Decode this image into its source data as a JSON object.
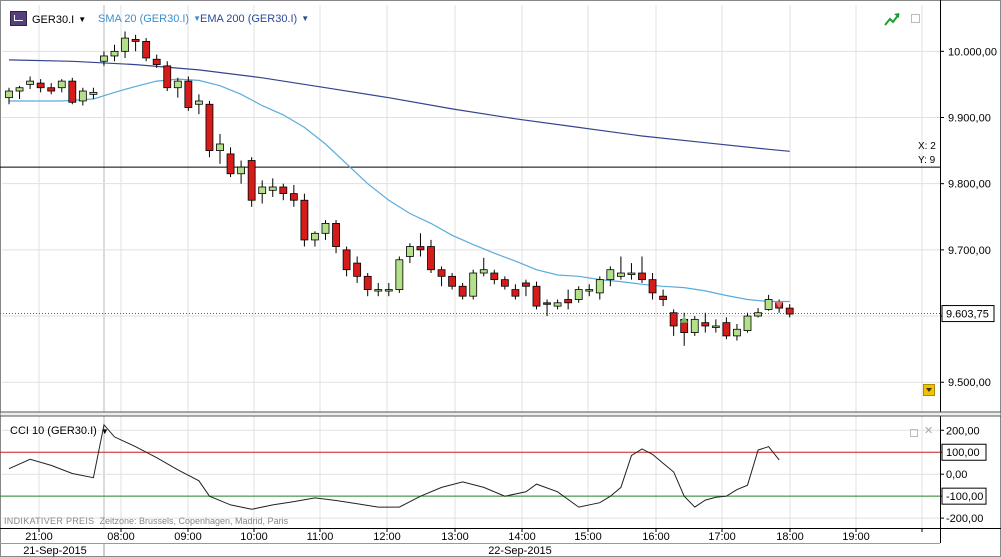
{
  "header": {
    "symbol": "GER30.I",
    "sma_label": "SMA 20 (GER30.I)",
    "ema_label": "EMA 200 (GER30.I)",
    "dropdown_glyph": "▼"
  },
  "crosshair": {
    "x_label": "X: 2",
    "y_label": "Y: 9"
  },
  "footer": {
    "note_main": "INDIKATIVER PREIS",
    "note_tz": "Zeitzone: Brussels, Copenhagen, Madrid, Paris"
  },
  "colors": {
    "bull": "#b4e08a",
    "bear": "#d61b1b",
    "sma": "#5aacdc",
    "ema": "#34448e",
    "cci": "#222222",
    "cci_upper": "#cc2222",
    "cci_lower": "#228822",
    "grid": "#e1e1e1"
  },
  "icons": {
    "trend": "trend-arrow-icon",
    "window": "window-icon",
    "close": "close-icon",
    "scroll": "scroll-down-icon"
  },
  "chart_data": [
    {
      "type": "candlestick",
      "symbol": "GER30.I",
      "ylim": [
        9455,
        10070
      ],
      "y_ticks": [
        9500,
        9600,
        9700,
        9800,
        9900,
        10000
      ],
      "y_tick_labels": [
        "9.500,00",
        "9.600,00",
        "9.700,00",
        "9.800,00",
        "9.900,00",
        "10.000,00"
      ],
      "current_price": 9603.75,
      "current_price_label": "9.603,75",
      "crosshair_price": 9825,
      "x_labels": [
        "21:00",
        "08:00",
        "09:00",
        "10:00",
        "11:00",
        "12:00",
        "13:00",
        "14:00",
        "15:00",
        "16:00",
        "17:00",
        "18:00",
        "19:00"
      ],
      "date_labels": [
        "21-Sep-2015",
        "22-Sep-2015"
      ],
      "candles": [
        [
          9930,
          9945,
          9920,
          9940
        ],
        [
          9940,
          9948,
          9928,
          9945
        ],
        [
          9950,
          9962,
          9943,
          9955
        ],
        [
          9952,
          9958,
          9938,
          9945
        ],
        [
          9945,
          9952,
          9935,
          9940
        ],
        [
          9945,
          9958,
          9938,
          9955
        ],
        [
          9955,
          9960,
          9920,
          9923
        ],
        [
          9925,
          9945,
          9918,
          9940
        ],
        [
          9935,
          9945,
          9928,
          9938
        ],
        [
          9985,
          10000,
          9978,
          9993
        ],
        [
          9993,
          10010,
          9985,
          10000
        ],
        [
          10000,
          10030,
          9990,
          10020
        ],
        [
          10018,
          10025,
          10000,
          10015
        ],
        [
          10015,
          10020,
          9985,
          9990
        ],
        [
          9988,
          9995,
          9975,
          9980
        ],
        [
          9978,
          9985,
          9940,
          9945
        ],
        [
          9945,
          9960,
          9930,
          9955
        ],
        [
          9955,
          9962,
          9910,
          9915
        ],
        [
          9920,
          9935,
          9905,
          9925
        ],
        [
          9920,
          9925,
          9840,
          9850
        ],
        [
          9850,
          9875,
          9830,
          9860
        ],
        [
          9845,
          9855,
          9810,
          9815
        ],
        [
          9815,
          9835,
          9800,
          9825
        ],
        [
          9835,
          9840,
          9765,
          9775
        ],
        [
          9785,
          9805,
          9770,
          9795
        ],
        [
          9790,
          9808,
          9780,
          9795
        ],
        [
          9795,
          9800,
          9775,
          9785
        ],
        [
          9785,
          9798,
          9765,
          9775
        ],
        [
          9775,
          9785,
          9705,
          9715
        ],
        [
          9715,
          9728,
          9705,
          9725
        ],
        [
          9725,
          9745,
          9715,
          9740
        ],
        [
          9740,
          9745,
          9695,
          9705
        ],
        [
          9700,
          9705,
          9660,
          9670
        ],
        [
          9680,
          9690,
          9650,
          9660
        ],
        [
          9660,
          9665,
          9630,
          9640
        ],
        [
          9640,
          9650,
          9630,
          9640
        ],
        [
          9640,
          9650,
          9630,
          9640
        ],
        [
          9640,
          9690,
          9635,
          9685
        ],
        [
          9690,
          9710,
          9680,
          9705
        ],
        [
          9705,
          9725,
          9690,
          9700
        ],
        [
          9705,
          9715,
          9665,
          9670
        ],
        [
          9670,
          9675,
          9645,
          9660
        ],
        [
          9660,
          9665,
          9640,
          9645
        ],
        [
          9645,
          9650,
          9625,
          9630
        ],
        [
          9630,
          9670,
          9625,
          9665
        ],
        [
          9665,
          9688,
          9660,
          9670
        ],
        [
          9665,
          9670,
          9648,
          9655
        ],
        [
          9655,
          9660,
          9640,
          9645
        ],
        [
          9640,
          9648,
          9625,
          9630
        ],
        [
          9650,
          9655,
          9630,
          9645
        ],
        [
          9645,
          9652,
          9610,
          9615
        ],
        [
          9620,
          9625,
          9600,
          9618
        ],
        [
          9615,
          9625,
          9610,
          9620
        ],
        [
          9625,
          9640,
          9610,
          9620
        ],
        [
          9625,
          9645,
          9620,
          9640
        ],
        [
          9640,
          9648,
          9630,
          9640
        ],
        [
          9635,
          9660,
          9625,
          9655
        ],
        [
          9655,
          9675,
          9645,
          9670
        ],
        [
          9660,
          9690,
          9655,
          9665
        ],
        [
          9665,
          9680,
          9655,
          9665
        ],
        [
          9665,
          9690,
          9650,
          9655
        ],
        [
          9655,
          9665,
          9625,
          9635
        ],
        [
          9630,
          9640,
          9615,
          9625
        ],
        [
          9605,
          9610,
          9570,
          9585
        ],
        [
          9595,
          9605,
          9555,
          9575
        ],
        [
          9575,
          9600,
          9570,
          9595
        ],
        [
          9590,
          9605,
          9575,
          9585
        ],
        [
          9585,
          9595,
          9575,
          9585
        ],
        [
          9590,
          9598,
          9565,
          9570
        ],
        [
          9570,
          9588,
          9563,
          9580
        ],
        [
          9578,
          9605,
          9575,
          9600
        ],
        [
          9600,
          9612,
          9598,
          9605
        ],
        [
          9610,
          9632,
          9608,
          9625
        ],
        [
          9620,
          9625,
          9605,
          9612
        ],
        [
          9612,
          9618,
          9598,
          9603
        ]
      ],
      "sma20": [
        [
          0,
          9925
        ],
        [
          5,
          9925
        ],
        [
          8,
          9928
        ],
        [
          10,
          9938
        ],
        [
          12,
          9947
        ],
        [
          14,
          9955
        ],
        [
          16,
          9958
        ],
        [
          18,
          9956
        ],
        [
          20,
          9948
        ],
        [
          22,
          9935
        ],
        [
          24,
          9918
        ],
        [
          26,
          9904
        ],
        [
          28,
          9885
        ],
        [
          30,
          9860
        ],
        [
          32,
          9830
        ],
        [
          34,
          9800
        ],
        [
          36,
          9775
        ],
        [
          38,
          9755
        ],
        [
          40,
          9740
        ],
        [
          42,
          9722
        ],
        [
          44,
          9708
        ],
        [
          46,
          9695
        ],
        [
          48,
          9683
        ],
        [
          50,
          9670
        ],
        [
          52,
          9662
        ],
        [
          54,
          9660
        ],
        [
          56,
          9655
        ],
        [
          58,
          9652
        ],
        [
          60,
          9648
        ],
        [
          62,
          9645
        ],
        [
          64,
          9643
        ],
        [
          66,
          9638
        ],
        [
          68,
          9631
        ],
        [
          70,
          9625
        ],
        [
          72,
          9622
        ],
        [
          74,
          9622
        ]
      ],
      "ema200": [
        [
          0,
          9987
        ],
        [
          6,
          9985
        ],
        [
          12,
          9980
        ],
        [
          18,
          9972
        ],
        [
          24,
          9960
        ],
        [
          30,
          9945
        ],
        [
          36,
          9930
        ],
        [
          42,
          9913
        ],
        [
          48,
          9898
        ],
        [
          54,
          9885
        ],
        [
          60,
          9872
        ],
        [
          66,
          9862
        ],
        [
          72,
          9852
        ],
        [
          74,
          9849
        ]
      ]
    },
    {
      "type": "line",
      "title": "CCI 10 (GER30.I)",
      "ylim": [
        -245,
        265
      ],
      "y_ticks": [
        200,
        100,
        0,
        -100,
        -200
      ],
      "y_tick_labels": [
        "200,00",
        "100,00",
        "0,00",
        "-100,00",
        "-200,00"
      ],
      "levels": [
        100,
        -100
      ],
      "values": [
        [
          0,
          25
        ],
        [
          2,
          68
        ],
        [
          4,
          40
        ],
        [
          6,
          3
        ],
        [
          8,
          -16
        ],
        [
          9,
          225
        ],
        [
          10,
          170
        ],
        [
          12,
          125
        ],
        [
          14,
          75
        ],
        [
          16,
          20
        ],
        [
          18,
          -30
        ],
        [
          19,
          -100
        ],
        [
          21,
          -140
        ],
        [
          23,
          -160
        ],
        [
          25,
          -140
        ],
        [
          27,
          -125
        ],
        [
          29,
          -108
        ],
        [
          31,
          -120
        ],
        [
          33,
          -135
        ],
        [
          35,
          -150
        ],
        [
          37,
          -150
        ],
        [
          39,
          -100
        ],
        [
          41,
          -60
        ],
        [
          43,
          -35
        ],
        [
          45,
          -60
        ],
        [
          47,
          -100
        ],
        [
          49,
          -80
        ],
        [
          50,
          -45
        ],
        [
          52,
          -80
        ],
        [
          54,
          -150
        ],
        [
          56,
          -130
        ],
        [
          57,
          -100
        ],
        [
          58,
          -60
        ],
        [
          59,
          85
        ],
        [
          60,
          115
        ],
        [
          61,
          90
        ],
        [
          62,
          50
        ],
        [
          63,
          10
        ],
        [
          64,
          -100
        ],
        [
          65,
          -150
        ],
        [
          66,
          -118
        ],
        [
          67,
          -105
        ],
        [
          68,
          -100
        ],
        [
          69,
          -70
        ],
        [
          70,
          -50
        ],
        [
          71,
          110
        ],
        [
          72,
          125
        ],
        [
          73,
          65
        ]
      ]
    }
  ]
}
